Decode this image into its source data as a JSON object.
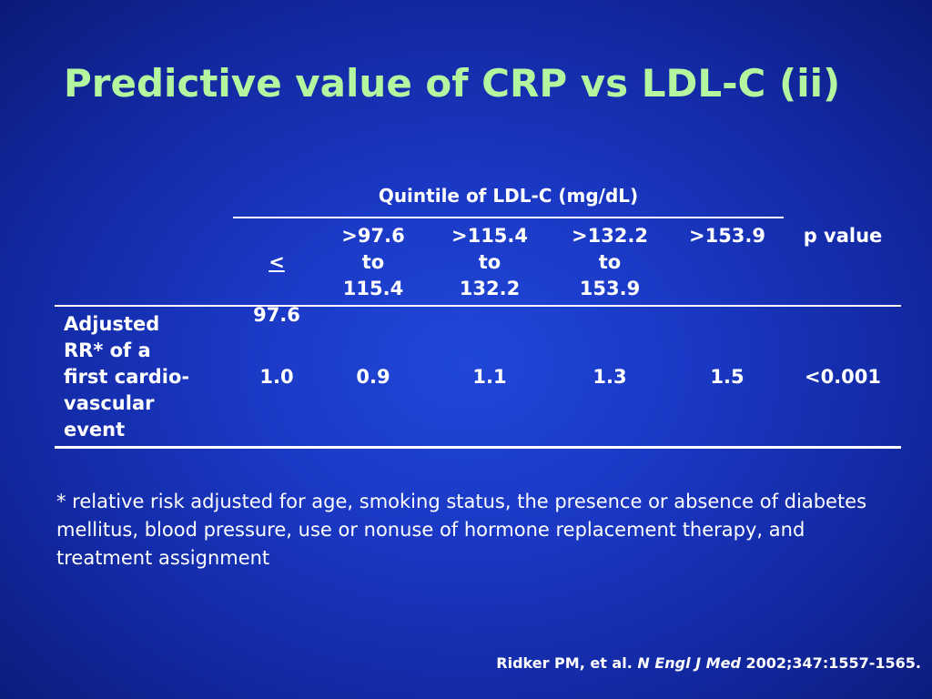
{
  "slide": {
    "title": "Predictive value of CRP vs LDL-C (ii)"
  },
  "table": {
    "group_header": "Quintile of LDL-C (mg/dL)",
    "first_col_lt_symbol": "<",
    "columns": [
      "97.6",
      ">97.6\nto\n115.4",
      ">115.4\nto\n132.2",
      ">132.2\nto\n153.9",
      ">153.9"
    ],
    "p_header": "p value",
    "row_label": "Adjusted\nRR* of a\nfirst cardio-\nvascular\nevent",
    "values": [
      "1.0",
      "0.9",
      "1.1",
      "1.3",
      "1.5"
    ],
    "p_value": "<0.001"
  },
  "footnote": "* relative risk adjusted for age, smoking status, the presence or absence of diabetes mellitus, blood pressure, use or nonuse of hormone replacement therapy, and treatment assignment",
  "citation": {
    "authors": "Ridker PM, et al.",
    "journal": "N Engl J Med",
    "details": "2002;347:1557-1565."
  }
}
